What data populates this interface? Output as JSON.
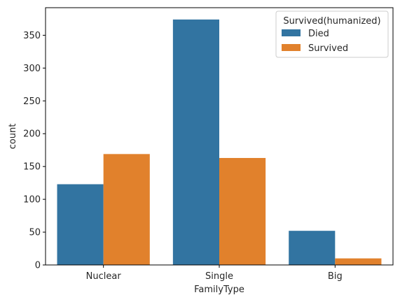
{
  "chart_data": {
    "type": "bar",
    "title": "",
    "xlabel": "FamilyType",
    "ylabel": "count",
    "categories": [
      "Nuclear",
      "Single",
      "Big"
    ],
    "series": [
      {
        "name": "Died",
        "values": [
          123,
          374,
          52
        ],
        "color": "#3274a1"
      },
      {
        "name": "Survived",
        "values": [
          169,
          163,
          10
        ],
        "color": "#e1812c"
      }
    ],
    "ylim": [
      0,
      392
    ],
    "yticks": [
      0,
      50,
      100,
      150,
      200,
      250,
      300,
      350
    ],
    "ytick_labels": [
      "0",
      "50",
      "100",
      "150",
      "200",
      "250",
      "300",
      "350"
    ],
    "grid": false,
    "legend": {
      "title": "Survived(humanized)",
      "placement": "top-right",
      "entries": [
        "Died",
        "Survived"
      ]
    }
  }
}
